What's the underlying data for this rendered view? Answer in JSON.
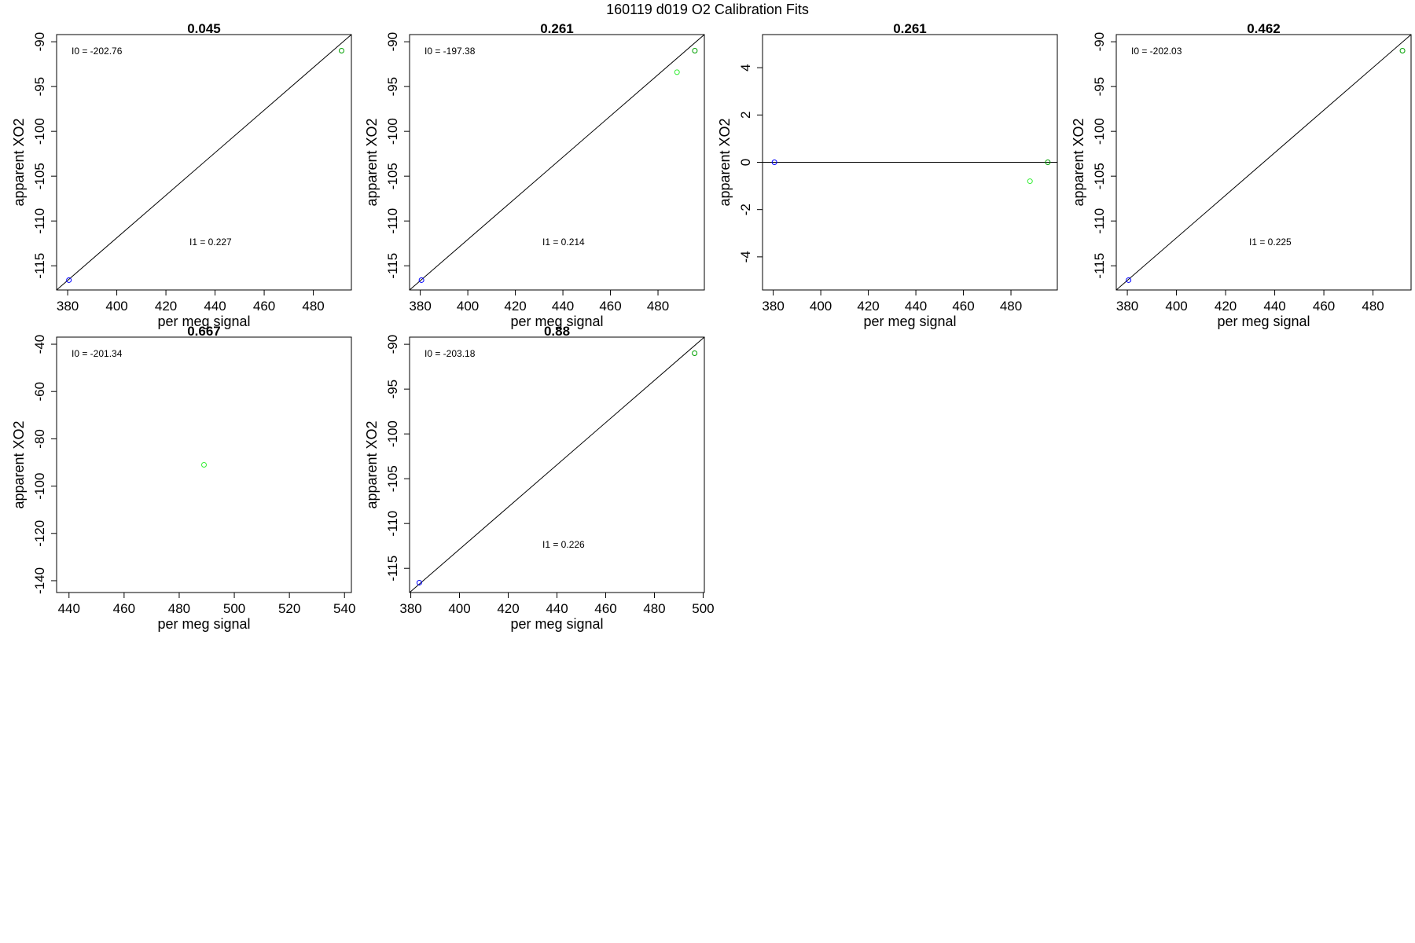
{
  "figure": {
    "title": "160119   d019   O2 Calibration Fits"
  },
  "chart_data": [
    {
      "type": "scatter",
      "title": "0.045",
      "xlabel": "per meg signal",
      "ylabel": "apparent XO2",
      "xlim": [
        375.5,
        495.5
      ],
      "ylim": [
        -117.7,
        -89.2
      ],
      "xticks": [
        380,
        400,
        420,
        440,
        460,
        480
      ],
      "yticks": [
        -90,
        -95,
        -100,
        -105,
        -110,
        -115
      ],
      "fit_line": [
        [
          375.5,
          -117.7
        ],
        [
          495.5,
          -89.2
        ]
      ],
      "points": [
        {
          "x": 380.5,
          "y": -116.6,
          "color": "#0000ff"
        },
        {
          "x": 491.5,
          "y": -91.0,
          "color": "#00a000"
        }
      ],
      "annotations": {
        "intercept": "I0 =  -202.76",
        "slope": "I1 =  0.227"
      }
    },
    {
      "type": "scatter",
      "title": "0.261",
      "xlabel": "per meg signal",
      "ylabel": "apparent XO2",
      "xlim": [
        375.5,
        499.5
      ],
      "ylim": [
        -117.7,
        -89.2
      ],
      "xticks": [
        380,
        400,
        420,
        440,
        460,
        480
      ],
      "yticks": [
        -90,
        -95,
        -100,
        -105,
        -110,
        -115
      ],
      "fit_line": [
        [
          375.5,
          -117.7
        ],
        [
          499.5,
          -89.2
        ]
      ],
      "points": [
        {
          "x": 380.5,
          "y": -116.6,
          "color": "#0000ff"
        },
        {
          "x": 488.0,
          "y": -93.4,
          "color": "#33ee33"
        },
        {
          "x": 495.5,
          "y": -91.0,
          "color": "#00a000"
        }
      ],
      "annotations": {
        "intercept": "I0 =  -197.38",
        "slope": "I1 =  0.214"
      }
    },
    {
      "type": "scatter",
      "title": "0.261",
      "xlabel": "per meg signal",
      "ylabel": "apparent XO2",
      "xlim": [
        375.5,
        499.5
      ],
      "ylim": [
        -5.4,
        5.4
      ],
      "xticks": [
        380,
        400,
        420,
        440,
        460,
        480
      ],
      "yticks": [
        4,
        2,
        0,
        -2,
        -4
      ],
      "fit_line": [
        [
          375.5,
          0
        ],
        [
          499.5,
          0
        ]
      ],
      "points": [
        {
          "x": 380.5,
          "y": 0.0,
          "color": "#0000ff"
        },
        {
          "x": 488.0,
          "y": -0.8,
          "color": "#33ee33"
        },
        {
          "x": 495.5,
          "y": 0.0,
          "color": "#00a000"
        }
      ],
      "annotations": {
        "intercept": "",
        "slope": ""
      }
    },
    {
      "type": "scatter",
      "title": "0.462",
      "xlabel": "per meg signal",
      "ylabel": "apparent XO2",
      "xlim": [
        375.5,
        495.5
      ],
      "ylim": [
        -117.7,
        -89.2
      ],
      "xticks": [
        380,
        400,
        420,
        440,
        460,
        480
      ],
      "yticks": [
        -90,
        -95,
        -100,
        -105,
        -110,
        -115
      ],
      "fit_line": [
        [
          375.5,
          -117.7
        ],
        [
          495.5,
          -89.2
        ]
      ],
      "points": [
        {
          "x": 380.5,
          "y": -116.6,
          "color": "#0000ff"
        },
        {
          "x": 492.0,
          "y": -91.0,
          "color": "#00a000"
        }
      ],
      "annotations": {
        "intercept": "I0 =  -202.03",
        "slope": "I1 =  0.225"
      }
    },
    {
      "type": "scatter",
      "title": "0.667",
      "xlabel": "per meg signal",
      "ylabel": "apparent XO2",
      "xlim": [
        435.5,
        542.5
      ],
      "ylim": [
        -145.0,
        -37.0
      ],
      "xticks": [
        440,
        460,
        480,
        500,
        520,
        540
      ],
      "yticks": [
        -40,
        -60,
        -80,
        -100,
        -120,
        -140
      ],
      "fit_line": null,
      "points": [
        {
          "x": 489.0,
          "y": -91.0,
          "color": "#33ee33"
        }
      ],
      "annotations": {
        "intercept": "I0 =  -201.34",
        "slope": ""
      }
    },
    {
      "type": "scatter",
      "title": "0.88",
      "xlabel": "per meg signal",
      "ylabel": "apparent XO2",
      "xlim": [
        379.5,
        500.5
      ],
      "ylim": [
        -117.7,
        -89.2
      ],
      "xticks": [
        380,
        400,
        420,
        440,
        460,
        480,
        500
      ],
      "yticks": [
        -90,
        -95,
        -100,
        -105,
        -110,
        -115
      ],
      "fit_line": [
        [
          379.5,
          -117.7
        ],
        [
          500.5,
          -89.2
        ]
      ],
      "points": [
        {
          "x": 383.5,
          "y": -116.6,
          "color": "#0000ff"
        },
        {
          "x": 496.5,
          "y": -91.0,
          "color": "#00a000"
        }
      ],
      "annotations": {
        "intercept": "I0 =  -203.18",
        "slope": "I1 =  0.226"
      }
    }
  ]
}
